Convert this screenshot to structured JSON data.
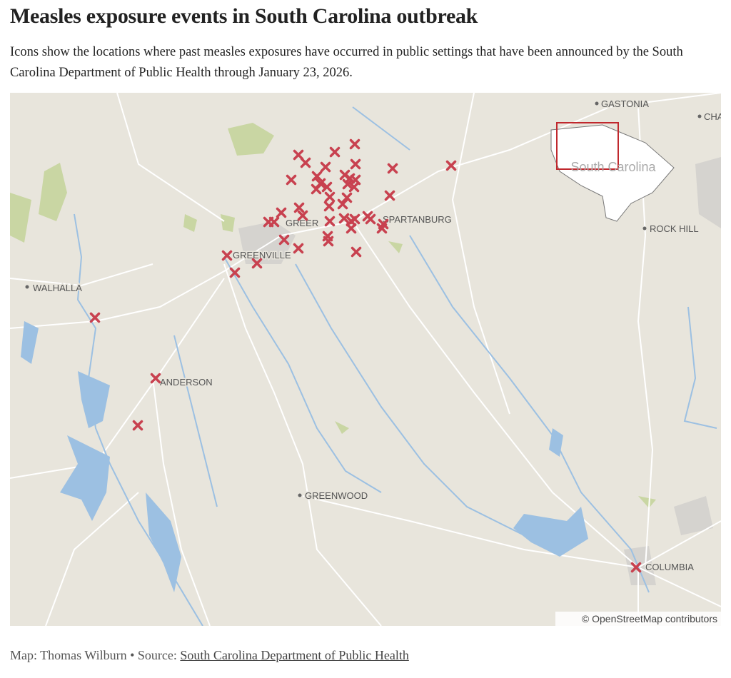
{
  "header": {
    "title": "Measles exposure events in South Carolina outbreak",
    "subtitle": "Icons show the locations where past measles exposures have occurred in public settings that have been announced by the South Carolina Department of Public Health through January 23, 2026."
  },
  "map": {
    "cities": [
      "GASTONIA",
      "CHA",
      "ROCK HILL",
      "GREER",
      "SPARTANBURG",
      "GREENVILLE",
      "WALHALLA",
      "ANDERSON",
      "GREENWOOD",
      "COLUMBIA"
    ],
    "inset_label": "South Carolina",
    "attribution": "© OpenStreetMap contributors"
  },
  "footer": {
    "credit": "Map: Thomas Wilburn",
    "separator": "•",
    "source_prefix": "Source:",
    "source_link": "South Carolina Department of Public Health"
  }
}
